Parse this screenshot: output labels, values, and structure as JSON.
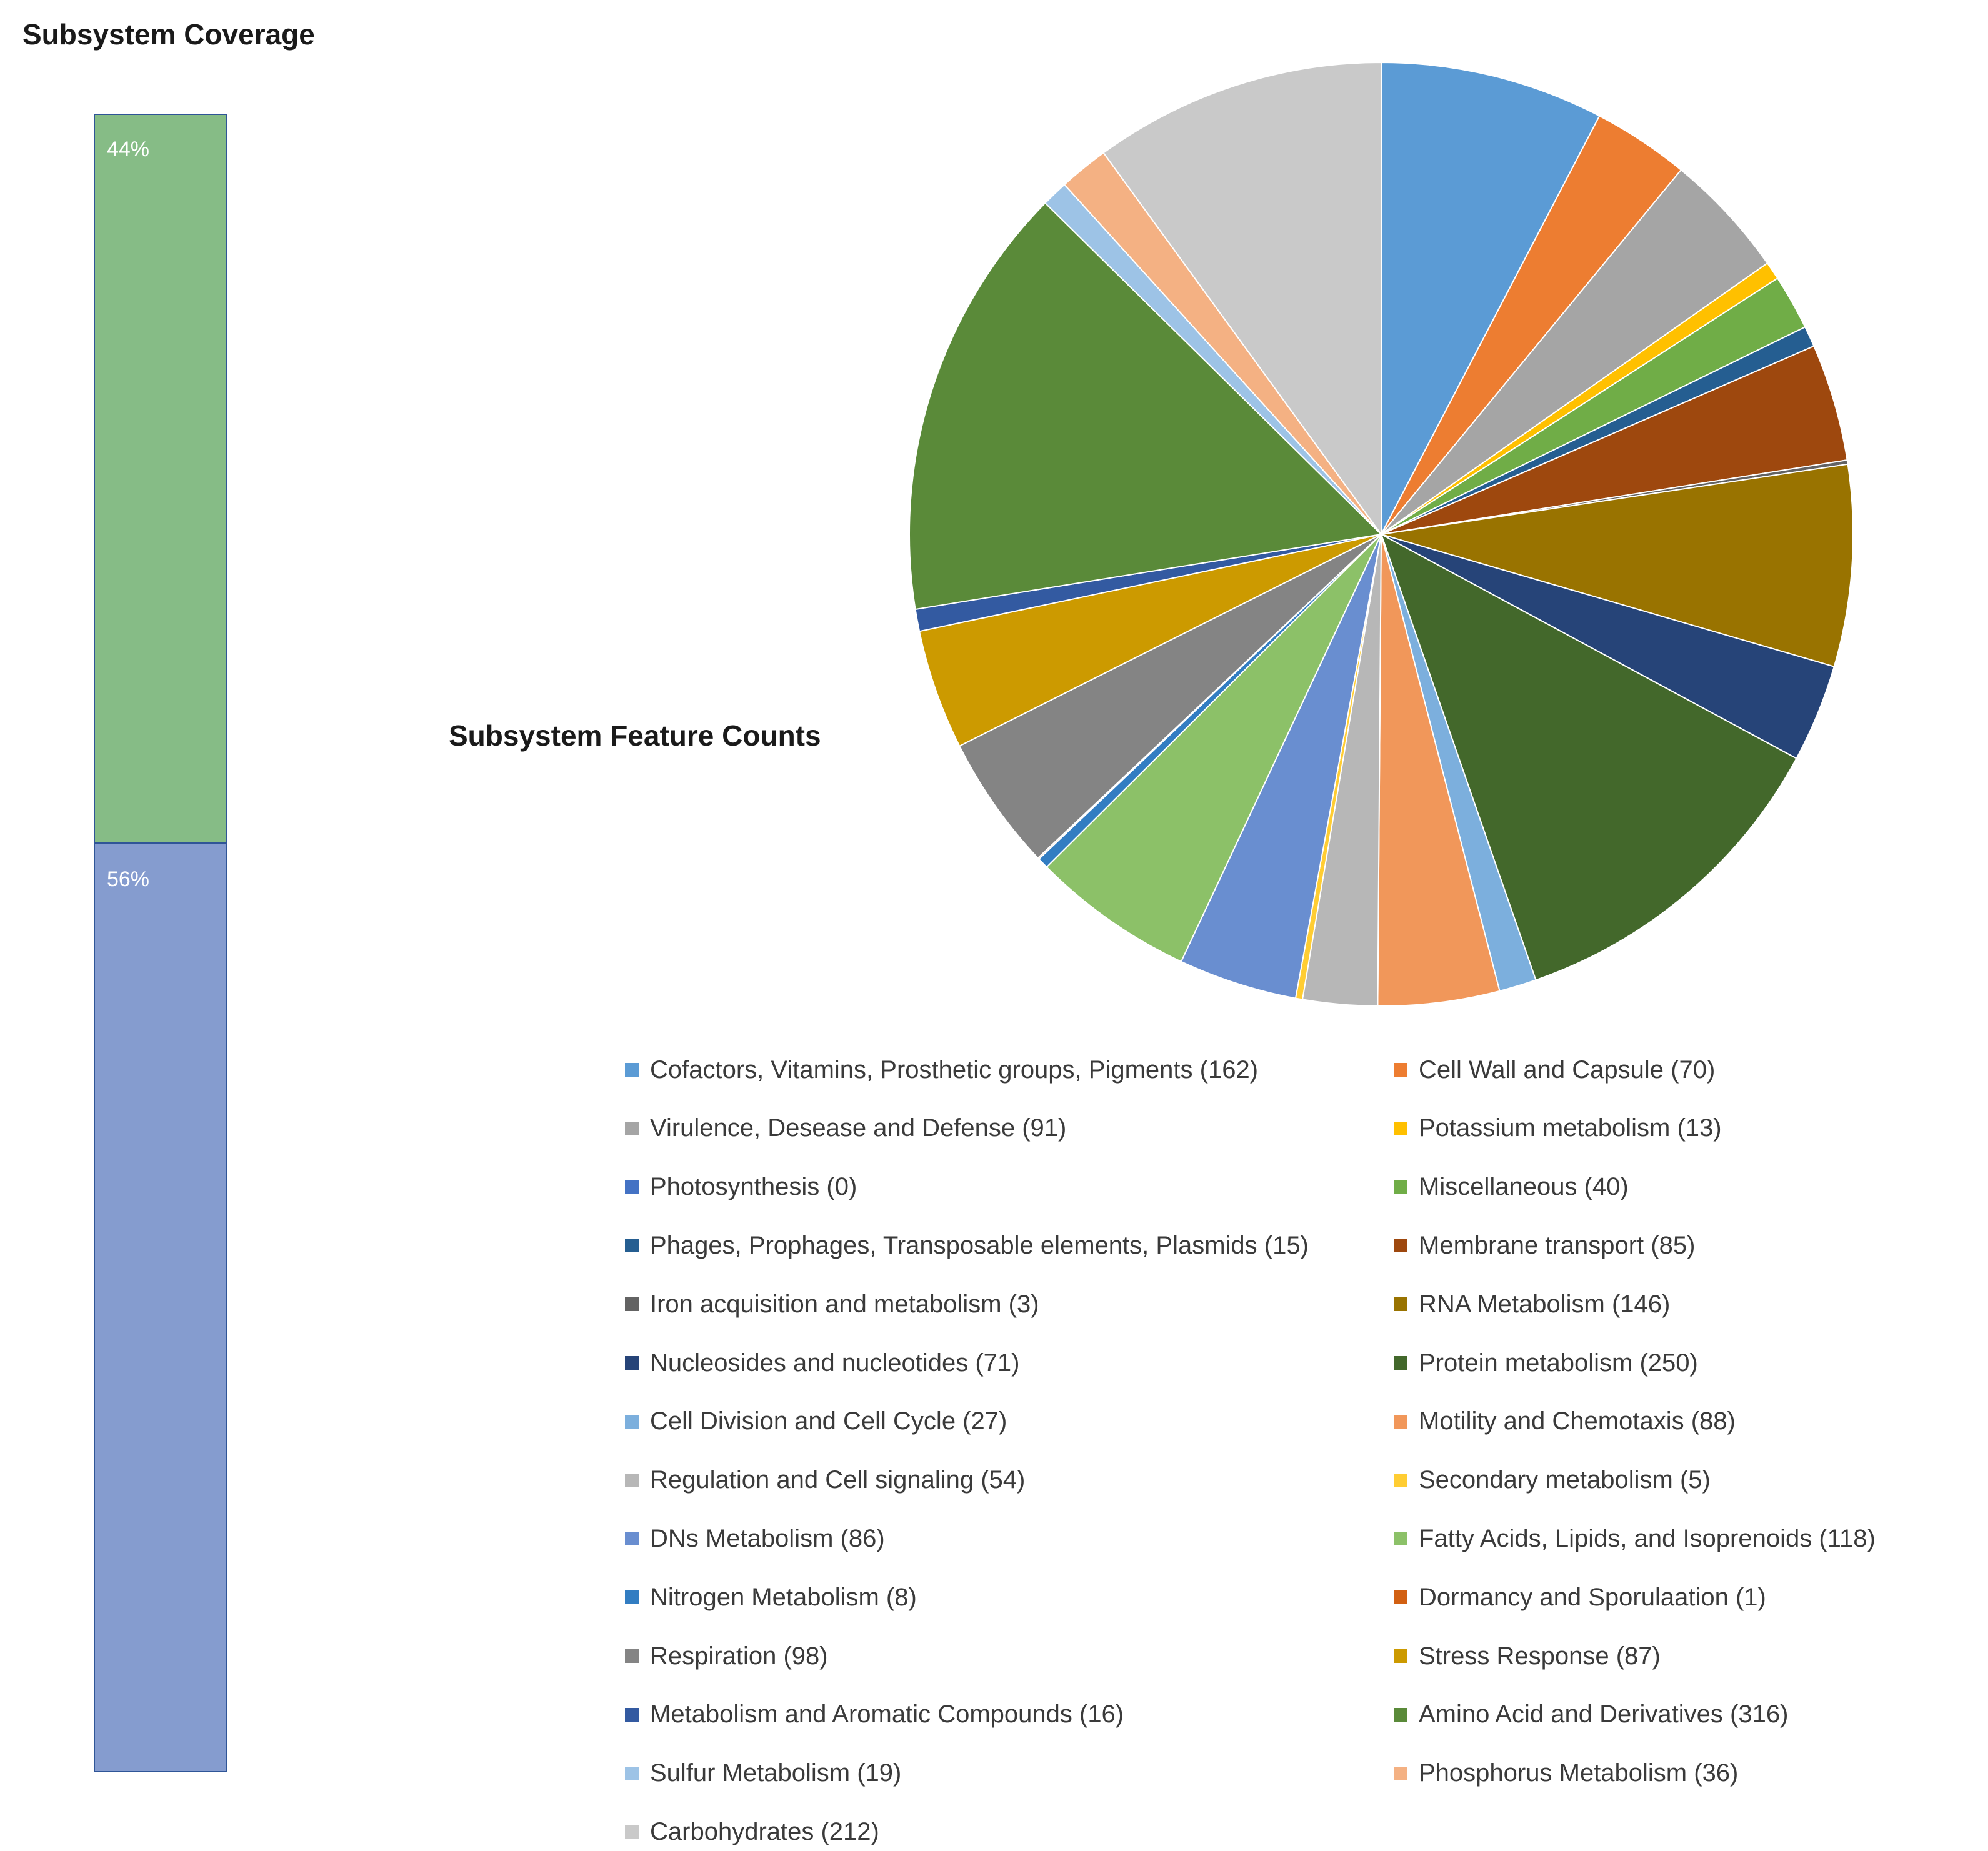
{
  "titles": {
    "coverage": "Subsystem Coverage",
    "pie": "Subsystem Feature Counts"
  },
  "chart_data": [
    {
      "type": "bar",
      "stacked": true,
      "title": "Subsystem Coverage",
      "series": [
        {
          "name": "",
          "value": 44,
          "label": "44%",
          "color": "#86bc86"
        },
        {
          "name": "",
          "value": 56,
          "label": "56%",
          "color": "#859ccf"
        }
      ],
      "ylim": [
        0,
        100
      ]
    },
    {
      "type": "pie",
      "title": "Subsystem Feature Counts",
      "slices": [
        {
          "label": "Cofactors, Vitamins, Prosthetic groups, Pigments (162)",
          "value": 162,
          "color": "#5b9bd5"
        },
        {
          "label": "Cell Wall and Capsule (70)",
          "value": 70,
          "color": "#ed7d31"
        },
        {
          "label": "Virulence, Desease and Defense (91)",
          "value": 91,
          "color": "#a5a5a5"
        },
        {
          "label": "Potassium metabolism (13)",
          "value": 13,
          "color": "#ffc000"
        },
        {
          "label": "Photosynthesis (0)",
          "value": 0,
          "color": "#4472c4"
        },
        {
          "label": "Miscellaneous (40)",
          "value": 40,
          "color": "#70ad47"
        },
        {
          "label": "Phages, Prophages, Transposable elements, Plasmids (15)",
          "value": 15,
          "color": "#255e91"
        },
        {
          "label": "Membrane transport (85)",
          "value": 85,
          "color": "#9e480e"
        },
        {
          "label": "Iron acquisition and metabolism (3)",
          "value": 3,
          "color": "#636363"
        },
        {
          "label": "RNA Metabolism (146)",
          "value": 146,
          "color": "#997300"
        },
        {
          "label": "Nucleosides and nucleotides (71)",
          "value": 71,
          "color": "#264478"
        },
        {
          "label": "Protein metabolism (250)",
          "value": 250,
          "color": "#43682b"
        },
        {
          "label": "Cell Division and Cell Cycle (27)",
          "value": 27,
          "color": "#7cafdd"
        },
        {
          "label": "Motility and Chemotaxis (88)",
          "value": 88,
          "color": "#f1975a"
        },
        {
          "label": "Regulation and Cell signaling (54)",
          "value": 54,
          "color": "#b7b7b7"
        },
        {
          "label": "Secondary metabolism (5)",
          "value": 5,
          "color": "#ffcd33"
        },
        {
          "label": "DNs Metabolism (86)",
          "value": 86,
          "color": "#698ed0"
        },
        {
          "label": "Fatty Acids, Lipids, and Isoprenoids (118)",
          "value": 118,
          "color": "#8cc168"
        },
        {
          "label": "Nitrogen Metabolism (8)",
          "value": 8,
          "color": "#327dc2"
        },
        {
          "label": "Dormancy and Sporulaation (1)",
          "value": 1,
          "color": "#d26012"
        },
        {
          "label": "Respiration (98)",
          "value": 98,
          "color": "#848484"
        },
        {
          "label": "Stress Response (87)",
          "value": 87,
          "color": "#cc9a00"
        },
        {
          "label": "Metabolism and Aromatic Compounds (16)",
          "value": 16,
          "color": "#335aa1"
        },
        {
          "label": "Amino Acid and Derivatives (316)",
          "value": 316,
          "color": "#5a8a39"
        },
        {
          "label": "Sulfur Metabolism (19)",
          "value": 19,
          "color": "#9dc3e6"
        },
        {
          "label": "Phosphorus Metabolism (36)",
          "value": 36,
          "color": "#f4b183"
        },
        {
          "label": "Carbohydrates (212)",
          "value": 212,
          "color": "#c9c9c9"
        }
      ],
      "legend_position": "bottom"
    }
  ]
}
